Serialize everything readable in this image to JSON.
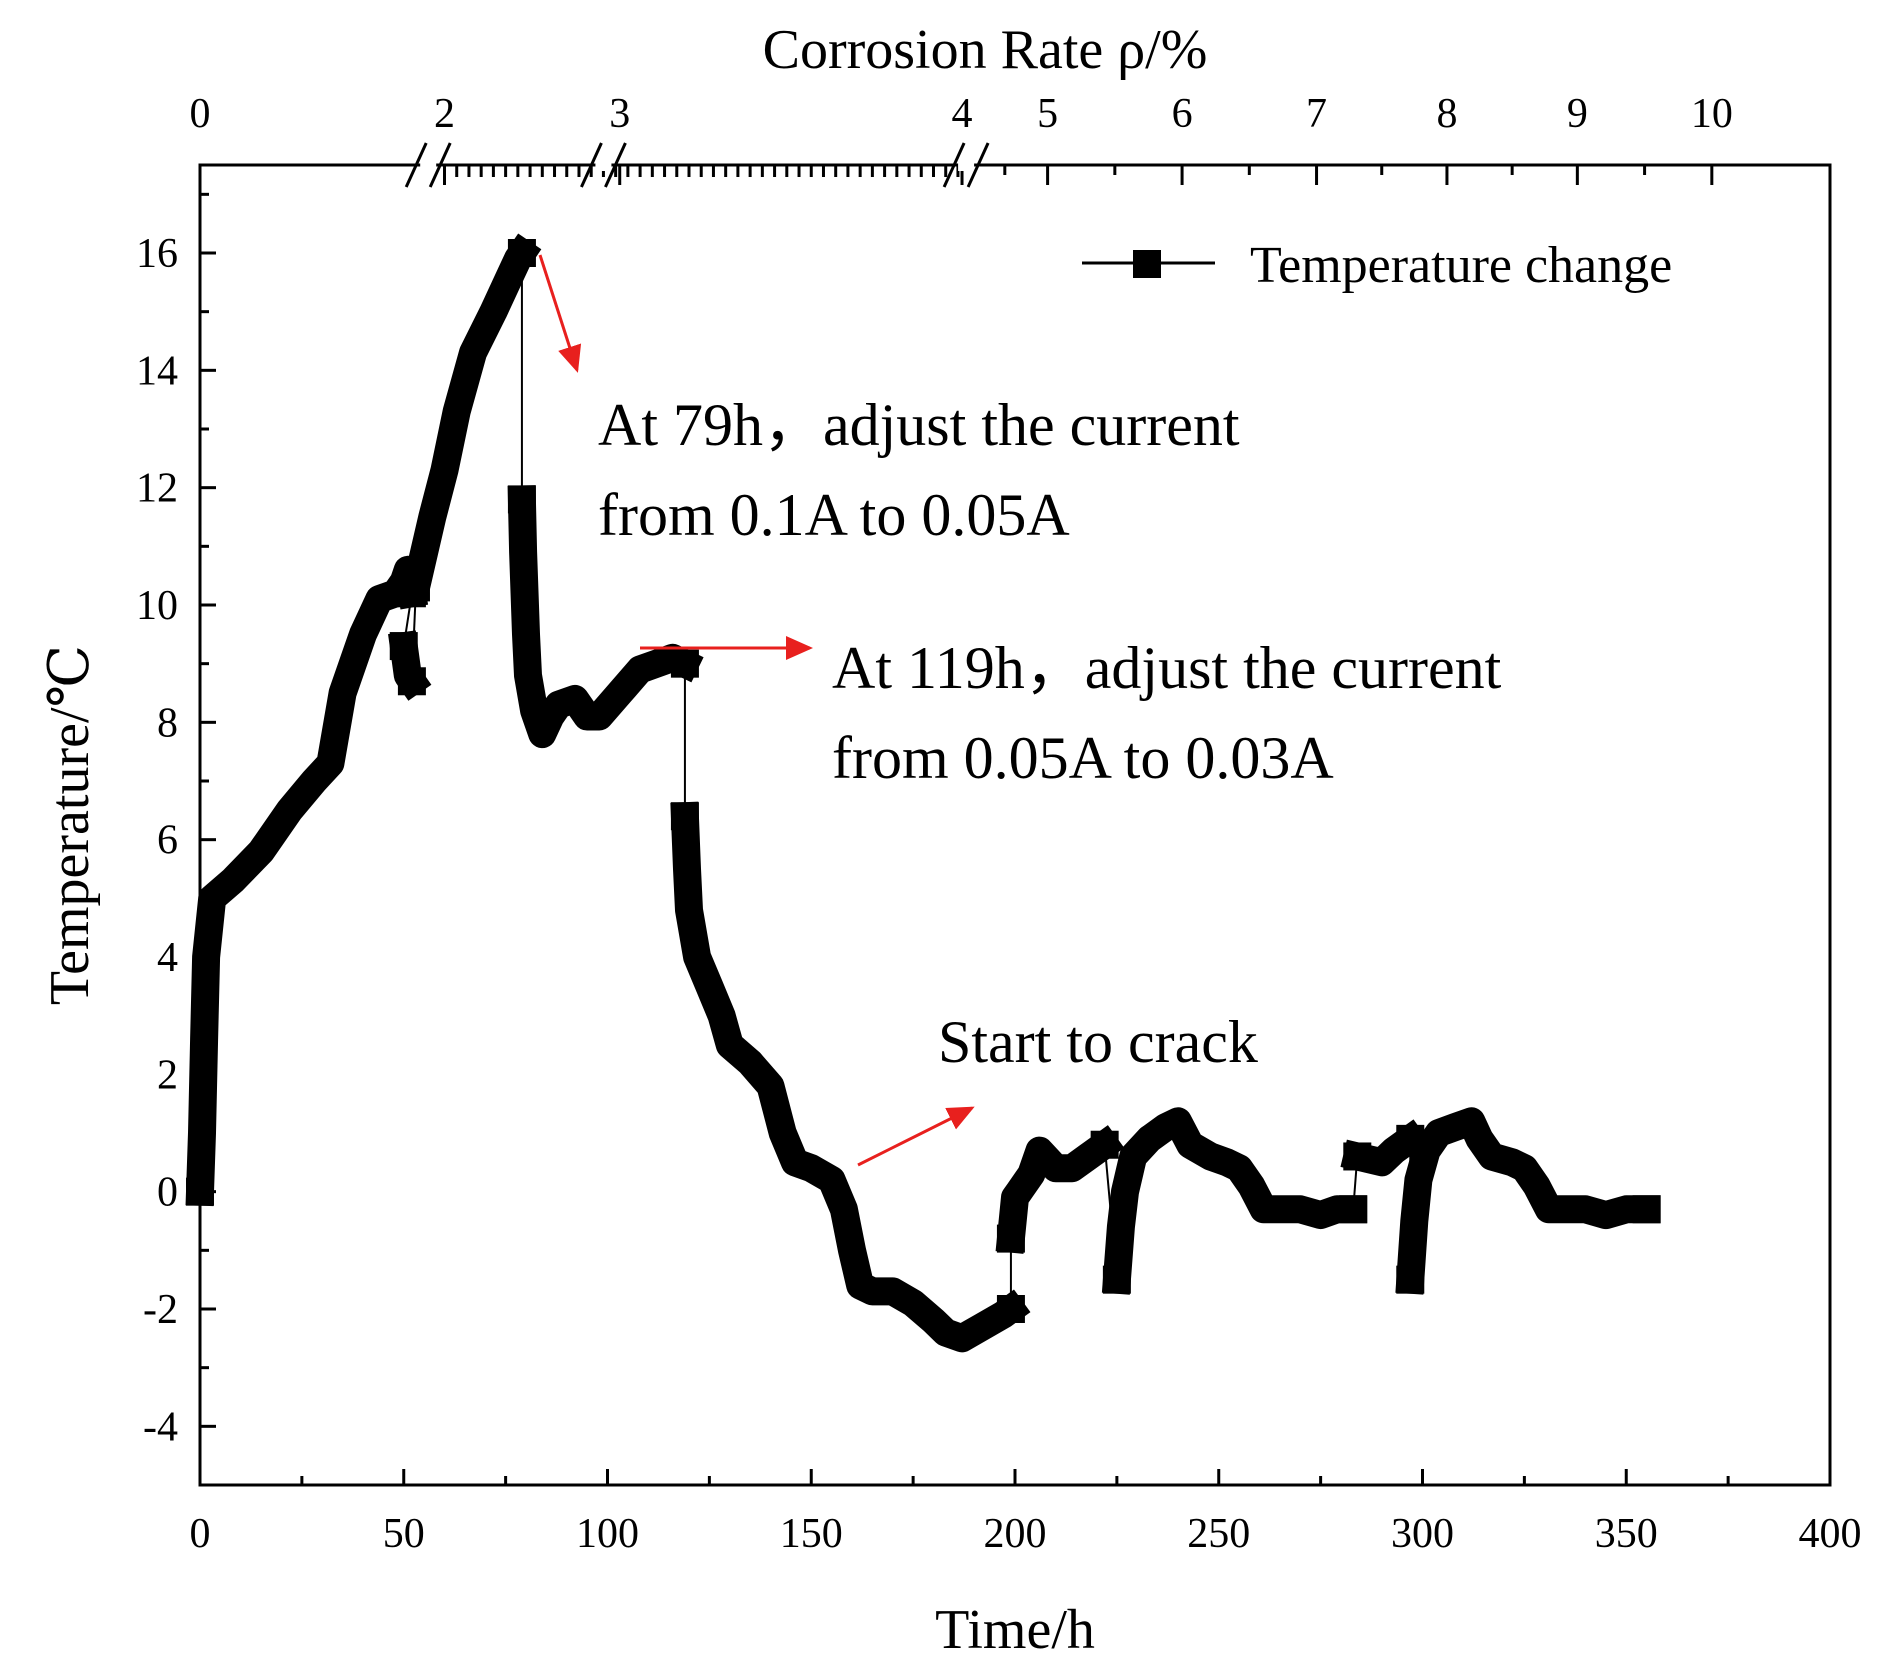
{
  "chart_data": {
    "type": "line",
    "title": "",
    "xlabel": "Time/h",
    "ylabel": "Temperature/℃",
    "x2label": "Corrosion Rate ρ/%",
    "xlim": [
      0,
      400
    ],
    "ylim": [
      -5,
      17.5
    ],
    "xticks": [
      0,
      50,
      100,
      150,
      200,
      250,
      300,
      350,
      400
    ],
    "yticks": [
      -4,
      -2,
      0,
      2,
      4,
      6,
      8,
      10,
      12,
      14,
      16
    ],
    "top_axis_ticks": [
      {
        "label": "0",
        "x_hours": 0
      },
      {
        "label": "2",
        "x_hours": 60
      },
      {
        "label": "3",
        "x_hours": 103
      },
      {
        "label": "4",
        "x_hours": 187
      },
      {
        "label": "5",
        "x_hours": 208
      },
      {
        "label": "6",
        "x_hours": 241
      },
      {
        "label": "7",
        "x_hours": 274
      },
      {
        "label": "8",
        "x_hours": 306
      },
      {
        "label": "9",
        "x_hours": 338
      },
      {
        "label": "10",
        "x_hours": 371
      }
    ],
    "top_axis_breaks_hours": [
      56,
      99,
      188
    ],
    "legend": {
      "label": "Temperature change",
      "position": "top-right"
    },
    "series": [
      {
        "name": "Temperature change",
        "segments": [
          [
            [
              0,
              0
            ],
            [
              0.5,
              1
            ],
            [
              1,
              2.6
            ],
            [
              1.5,
              4
            ],
            [
              3,
              5
            ],
            [
              8,
              5.3
            ],
            [
              15,
              5.8
            ],
            [
              22,
              6.5
            ],
            [
              28,
              7
            ],
            [
              32,
              7.3
            ],
            [
              35,
              8.5
            ],
            [
              40,
              9.5
            ],
            [
              44,
              10.1
            ],
            [
              48,
              10.2
            ],
            [
              50,
              10.4
            ],
            [
              51,
              10.6
            ],
            [
              52,
              10.2
            ]
          ],
          [
            [
              50,
              9.3
            ],
            [
              51,
              8.8
            ],
            [
              52,
              8.7
            ]
          ],
          [
            [
              53,
              10.3
            ],
            [
              57,
              11.5
            ],
            [
              60,
              12.3
            ],
            [
              63,
              13.3
            ],
            [
              67,
              14.3
            ],
            [
              72,
              15
            ],
            [
              76,
              15.6
            ],
            [
              78,
              15.9
            ],
            [
              79,
              16
            ]
          ],
          [
            [
              79,
              11.8
            ],
            [
              79.3,
              10.9
            ],
            [
              80,
              9.5
            ],
            [
              80.5,
              8.8
            ],
            [
              82,
              8.2
            ],
            [
              84,
              7.8
            ],
            [
              86,
              8.1
            ],
            [
              88,
              8.3
            ],
            [
              92,
              8.4
            ],
            [
              95,
              8.1
            ],
            [
              98,
              8.1
            ],
            [
              103,
              8.5
            ],
            [
              108,
              8.9
            ],
            [
              112,
              9
            ],
            [
              116,
              9.1
            ],
            [
              119,
              9
            ]
          ],
          [
            [
              119,
              6.4
            ],
            [
              119.5,
              5.5
            ],
            [
              120,
              4.8
            ],
            [
              122,
              4
            ],
            [
              125,
              3.5
            ],
            [
              128,
              3
            ],
            [
              130,
              2.5
            ],
            [
              135,
              2.2
            ],
            [
              140,
              1.8
            ],
            [
              143,
              1
            ],
            [
              146,
              0.5
            ],
            [
              150,
              0.4
            ],
            [
              155,
              0.2
            ],
            [
              158,
              -0.3
            ],
            [
              160,
              -1
            ],
            [
              162,
              -1.6
            ],
            [
              165,
              -1.7
            ],
            [
              170,
              -1.7
            ],
            [
              175,
              -1.9
            ],
            [
              180,
              -2.2
            ],
            [
              183,
              -2.4
            ],
            [
              187,
              -2.5
            ],
            [
              192,
              -2.3
            ],
            [
              197,
              -2.1
            ],
            [
              199,
              -2
            ]
          ],
          [
            [
              199,
              -0.8
            ],
            [
              200,
              -0.1
            ],
            [
              201,
              0
            ],
            [
              204,
              0.3
            ],
            [
              206,
              0.7
            ],
            [
              210,
              0.4
            ],
            [
              214,
              0.4
            ],
            [
              218,
              0.6
            ],
            [
              222,
              0.8
            ]
          ],
          [
            [
              225,
              -1.5
            ],
            [
              226,
              -0.6
            ],
            [
              227,
              0
            ],
            [
              229,
              0.6
            ],
            [
              233,
              0.9
            ],
            [
              237,
              1.1
            ],
            [
              240,
              1.2
            ],
            [
              243,
              0.8
            ],
            [
              248,
              0.6
            ],
            [
              252,
              0.5
            ],
            [
              255,
              0.4
            ],
            [
              258,
              0.1
            ],
            [
              261,
              -0.3
            ],
            [
              265,
              -0.3
            ],
            [
              270,
              -0.3
            ],
            [
              275,
              -0.4
            ],
            [
              279,
              -0.3
            ],
            [
              283,
              -0.3
            ]
          ],
          [
            [
              284,
              0.6
            ],
            [
              290,
              0.5
            ],
            [
              293,
              0.7
            ],
            [
              297,
              0.9
            ]
          ],
          [
            [
              297,
              -1.5
            ],
            [
              298,
              -0.5
            ],
            [
              299,
              0.2
            ],
            [
              301,
              0.7
            ],
            [
              304,
              1
            ],
            [
              308,
              1.1
            ],
            [
              312,
              1.2
            ],
            [
              314,
              0.9
            ],
            [
              317,
              0.6
            ],
            [
              322,
              0.5
            ],
            [
              325,
              0.4
            ],
            [
              328,
              0.1
            ],
            [
              331,
              -0.3
            ],
            [
              335,
              -0.3
            ],
            [
              340,
              -0.3
            ],
            [
              345,
              -0.4
            ],
            [
              350,
              -0.3
            ],
            [
              355,
              -0.3
            ]
          ]
        ]
      }
    ],
    "annotations": [
      {
        "id": "a79",
        "lines": [
          "At 79h，adjust the current",
          "from 0.1A to 0.05A"
        ]
      },
      {
        "id": "a119",
        "lines": [
          "At 119h，adjust the current",
          "from 0.05A to 0.03A"
        ]
      },
      {
        "id": "acrack",
        "lines": [
          "Start to crack"
        ]
      }
    ],
    "colors": {
      "series": "#000000",
      "arrow": "#e8201e",
      "axis": "#000000"
    }
  }
}
